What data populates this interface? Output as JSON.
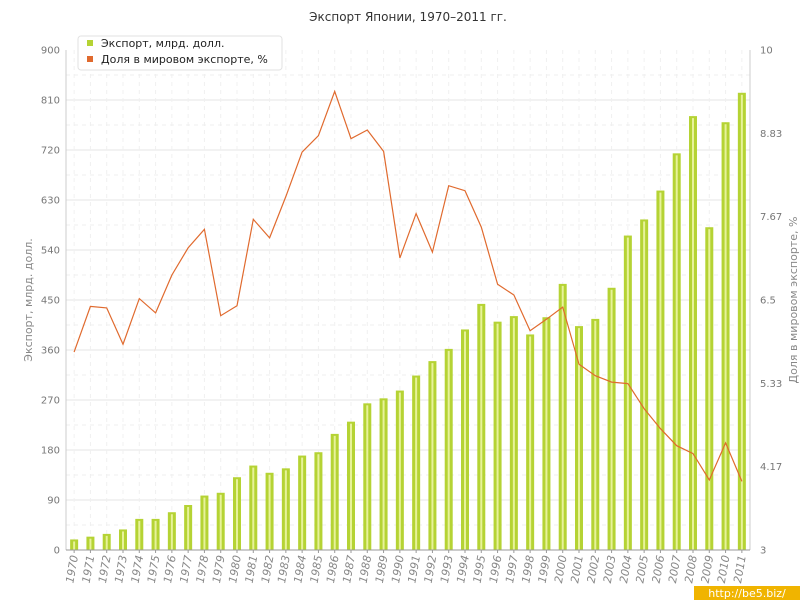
{
  "chart_data": {
    "type": "bar",
    "title": "Экспорт Японии, 1970–2011 гг.",
    "ylabel": "Экспорт, млрд. долл.",
    "y2label": "Доля в мировом экспорте, %",
    "ylim": [
      0,
      900
    ],
    "y2lim": [
      3,
      10
    ],
    "yticks": [
      "0",
      "90",
      "180",
      "270",
      "360",
      "450",
      "540",
      "630",
      "720",
      "810",
      "900"
    ],
    "y2ticks": [
      "3",
      "4.17",
      "5.33",
      "6.5",
      "7.67",
      "8.83",
      "10"
    ],
    "grid": true,
    "legend_position": "top-left",
    "categories": [
      "1970",
      "1971",
      "1972",
      "1973",
      "1974",
      "1975",
      "1976",
      "1977",
      "1978",
      "1979",
      "1980",
      "1981",
      "1982",
      "1983",
      "1984",
      "1985",
      "1986",
      "1987",
      "1988",
      "1989",
      "1990",
      "1991",
      "1992",
      "1993",
      "1994",
      "1995",
      "1996",
      "1997",
      "1998",
      "1999",
      "2000",
      "2001",
      "2002",
      "2003",
      "2004",
      "2005",
      "2006",
      "2007",
      "2008",
      "2009",
      "2010",
      "2011"
    ],
    "series": [
      {
        "name": "Экспорт, млрд. долл.",
        "type": "bar",
        "axis": "left",
        "color": "#b5d334",
        "values": [
          19,
          24,
          29,
          37,
          56,
          56,
          68,
          81,
          98,
          103,
          131,
          152,
          139,
          147,
          170,
          176,
          209,
          231,
          264,
          273,
          287,
          314,
          340,
          362,
          397,
          443,
          411,
          421,
          388,
          419,
          479,
          403,
          416,
          472,
          566,
          595,
          647,
          714,
          781,
          581,
          770,
          823
        ]
      },
      {
        "name": "Доля в мировом экспорте, %",
        "type": "line",
        "axis": "right",
        "color": "#e06a2e",
        "values": [
          5.77,
          6.41,
          6.39,
          5.88,
          6.52,
          6.32,
          6.85,
          7.23,
          7.49,
          6.28,
          6.42,
          7.63,
          7.37,
          7.95,
          8.57,
          8.8,
          9.42,
          8.76,
          8.88,
          8.58,
          7.09,
          7.71,
          7.17,
          8.1,
          8.03,
          7.52,
          6.72,
          6.57,
          6.07,
          6.23,
          6.4,
          5.6,
          5.44,
          5.35,
          5.33,
          4.98,
          4.7,
          4.46,
          4.35,
          3.98,
          4.5,
          3.96
        ]
      }
    ]
  },
  "watermark": "http://be5.biz/",
  "colors": {
    "bar": "#b5d334",
    "bar_inner": "#e7f29a",
    "line": "#e06a2e",
    "grid": "#e6e6e6"
  }
}
